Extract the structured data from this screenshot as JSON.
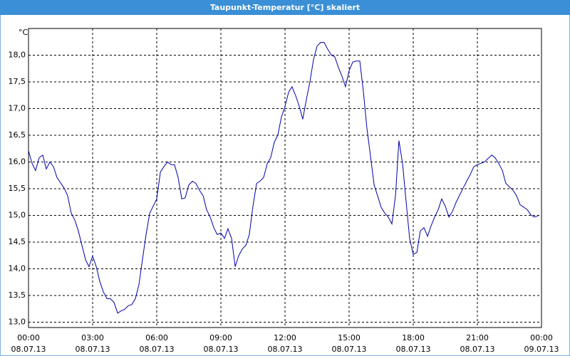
{
  "chart_data": {
    "type": "line",
    "title": "Taupunkt-Temperatur [°C] skaliert",
    "y_unit": "°C",
    "xlim": [
      0,
      24
    ],
    "ylim": [
      12.9,
      18.5
    ],
    "grid": true,
    "xticks": [
      {
        "value": 0,
        "label": "00:00",
        "date": "08.07.13"
      },
      {
        "value": 3,
        "label": "03:00",
        "date": "08.07.13"
      },
      {
        "value": 6,
        "label": "06:00",
        "date": "08.07.13"
      },
      {
        "value": 9,
        "label": "09:00",
        "date": "08.07.13"
      },
      {
        "value": 12,
        "label": "12:00",
        "date": "08.07.13"
      },
      {
        "value": 15,
        "label": "15:00",
        "date": "08.07.13"
      },
      {
        "value": 18,
        "label": "18:00",
        "date": "08.07.13"
      },
      {
        "value": 21,
        "label": "21:00",
        "date": "08.07.13"
      },
      {
        "value": 24,
        "label": "00:00",
        "date": "09.07.13"
      }
    ],
    "yticks": [
      {
        "value": 13,
        "label": "13,0"
      },
      {
        "value": 13.5,
        "label": "13,5"
      },
      {
        "value": 14,
        "label": "14,0"
      },
      {
        "value": 14.5,
        "label": "14,5"
      },
      {
        "value": 15,
        "label": "15,0"
      },
      {
        "value": 15.5,
        "label": "15,5"
      },
      {
        "value": 16,
        "label": "16,0"
      },
      {
        "value": 16.5,
        "label": "16,5"
      },
      {
        "value": 17,
        "label": "17,0"
      },
      {
        "value": 17.5,
        "label": "17,5"
      },
      {
        "value": 18,
        "label": "18,0"
      }
    ],
    "x": [
      0,
      0.17,
      0.33,
      0.5,
      0.67,
      0.83,
      1,
      1.17,
      1.33,
      1.67,
      1.83,
      2,
      2.17,
      2.33,
      2.5,
      2.67,
      2.83,
      3,
      3.17,
      3.33,
      3.5,
      3.67,
      3.83,
      4,
      4.17,
      4.33,
      4.5,
      4.67,
      4.83,
      5,
      5.17,
      5.33,
      5.5,
      5.67,
      5.83,
      6,
      6.17,
      6.33,
      6.5,
      6.67,
      6.83,
      7,
      7.17,
      7.33,
      7.5,
      7.67,
      7.83,
      8,
      8.17,
      8.33,
      8.5,
      8.67,
      8.83,
      9,
      9.17,
      9.33,
      9.5,
      9.67,
      9.83,
      10,
      10.17,
      10.33,
      10.5,
      10.67,
      10.83,
      11,
      11.17,
      11.33,
      11.5,
      11.67,
      11.83,
      12,
      12.17,
      12.33,
      12.5,
      12.67,
      12.83,
      13,
      13.17,
      13.33,
      13.5,
      13.67,
      13.83,
      14,
      14.17,
      14.33,
      14.5,
      14.67,
      14.83,
      15,
      15.17,
      15.33,
      15.5,
      15.67,
      15.83,
      16,
      16.17,
      16.33,
      16.5,
      16.67,
      16.83,
      17,
      17.17,
      17.33,
      17.5,
      17.67,
      17.83,
      18,
      18.17,
      18.33,
      18.5,
      18.67,
      18.83,
      19,
      19.17,
      19.33,
      19.5,
      19.67,
      19.83,
      20,
      20.33,
      20.67,
      20.83,
      21,
      21.33,
      21.67,
      21.83,
      22,
      22.17,
      22.33,
      22.67,
      22.83,
      23,
      23.33,
      23.5,
      23.67,
      23.83
    ],
    "series": [
      {
        "name": "Taupunkt-Temperatur",
        "color": "#0000a8",
        "values": [
          16.21,
          15.97,
          15.84,
          16.08,
          16.13,
          15.87,
          16.0,
          15.91,
          15.71,
          15.51,
          15.37,
          15.04,
          14.91,
          14.71,
          14.44,
          14.17,
          14.04,
          14.24,
          14.04,
          13.77,
          13.57,
          13.44,
          13.44,
          13.37,
          13.17,
          13.21,
          13.24,
          13.31,
          13.33,
          13.44,
          13.71,
          14.17,
          14.64,
          15.04,
          15.17,
          15.31,
          15.81,
          15.91,
          16.0,
          15.95,
          15.95,
          15.71,
          15.31,
          15.33,
          15.57,
          15.64,
          15.6,
          15.47,
          15.37,
          15.11,
          14.97,
          14.77,
          14.64,
          14.67,
          14.57,
          14.75,
          14.57,
          14.04,
          14.24,
          14.37,
          14.44,
          14.64,
          15.17,
          15.6,
          15.64,
          15.71,
          15.97,
          16.08,
          16.37,
          16.51,
          16.84,
          17.04,
          17.31,
          17.41,
          17.24,
          17.04,
          16.8,
          17.17,
          17.51,
          17.91,
          18.17,
          18.24,
          18.24,
          18.11,
          18.0,
          17.97,
          17.77,
          17.6,
          17.41,
          17.71,
          17.87,
          17.89,
          17.89,
          17.31,
          16.64,
          16.11,
          15.57,
          15.37,
          15.15,
          15.04,
          14.97,
          14.84,
          15.37,
          16.4,
          15.97,
          15.24,
          14.57,
          14.27,
          14.31,
          14.71,
          14.77,
          14.61,
          14.8,
          14.97,
          15.11,
          15.31,
          15.17,
          14.97,
          15.07,
          15.24,
          15.51,
          15.77,
          15.91,
          15.95,
          16.0,
          16.13,
          16.08,
          15.97,
          15.84,
          15.6,
          15.47,
          15.37,
          15.2,
          15.11,
          15.01,
          14.97,
          14.99
        ]
      }
    ]
  }
}
